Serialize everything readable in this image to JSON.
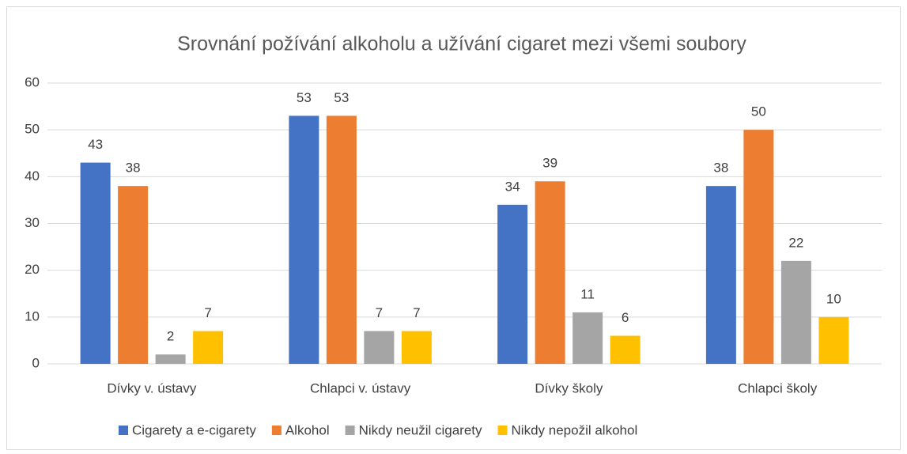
{
  "chart_data": {
    "type": "bar",
    "title": "Srovnání požívání alkoholu a užívání cigaret mezi všemi soubory",
    "categories": [
      "Dívky v. ústavy",
      "Chlapci v. ústavy",
      "Dívky školy",
      "Chlapci školy"
    ],
    "series": [
      {
        "name": "Cigarety a e-cigarety",
        "color": "#4472c4",
        "values": [
          43,
          53,
          34,
          38
        ]
      },
      {
        "name": "Alkohol",
        "color": "#ed7d31",
        "values": [
          38,
          53,
          39,
          50
        ]
      },
      {
        "name": "Nikdy neužil cigarety",
        "color": "#a5a5a5",
        "values": [
          2,
          7,
          11,
          22
        ]
      },
      {
        "name": "Nikdy nepožil alkohol",
        "color": "#ffc000",
        "values": [
          7,
          7,
          6,
          10
        ]
      }
    ],
    "ylim": [
      0,
      60
    ],
    "yticks": [
      0,
      10,
      20,
      30,
      40,
      50,
      60
    ],
    "grid": true,
    "legend": "bottom"
  }
}
